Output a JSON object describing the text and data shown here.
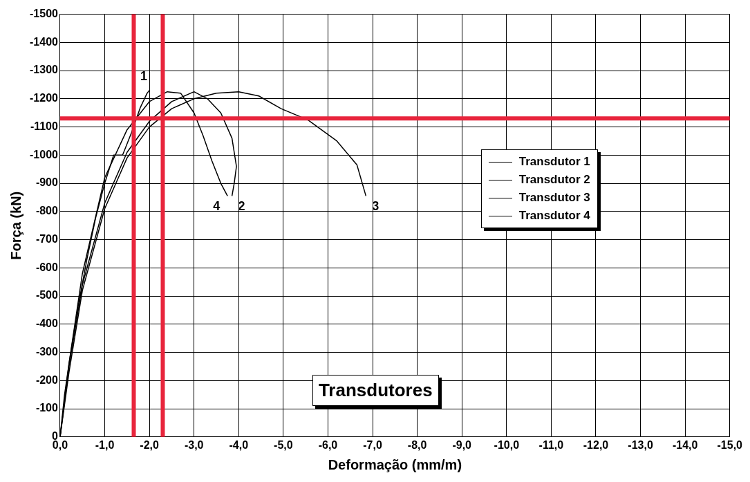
{
  "chart_data": {
    "type": "line",
    "xlabel": "Deformação (mm/m)",
    "ylabel": "Força (kN)",
    "xlim": [
      0,
      -15
    ],
    "ylim": [
      0,
      -1500
    ],
    "xticks": [
      {
        "value": 0,
        "label": "0,0"
      },
      {
        "value": -1,
        "label": "-1,0"
      },
      {
        "value": -2,
        "label": "-2,0"
      },
      {
        "value": -3,
        "label": "-3,0"
      },
      {
        "value": -4,
        "label": "-4,0"
      },
      {
        "value": -5,
        "label": "-5,0"
      },
      {
        "value": -6,
        "label": "-6,0"
      },
      {
        "value": -7,
        "label": "-7,0"
      },
      {
        "value": -8,
        "label": "-8,0"
      },
      {
        "value": -9,
        "label": "-9,0"
      },
      {
        "value": -10,
        "label": "-10,0"
      },
      {
        "value": -11,
        "label": "-11,0"
      },
      {
        "value": -12,
        "label": "-12,0"
      },
      {
        "value": -13,
        "label": "-13,0"
      },
      {
        "value": -14,
        "label": "-14,0"
      },
      {
        "value": -15,
        "label": "-15,0"
      }
    ],
    "yticks": [
      0,
      -100,
      -200,
      -300,
      -400,
      -500,
      -600,
      -700,
      -800,
      -900,
      -1000,
      -1100,
      -1200,
      -1300,
      -1400,
      -1500
    ],
    "grid": true,
    "legend": "right",
    "marker": "none",
    "line_style": "solid",
    "series": [
      {
        "name": "Transdutor 1",
        "color": "#000000",
        "x": [
          0,
          -0.1,
          -0.2,
          -0.4,
          -0.6,
          -0.8,
          -1.0,
          -1.2,
          -1.4,
          -1.6,
          -1.8,
          -1.95,
          -2.0
        ],
        "values": [
          0,
          -150,
          -260,
          -460,
          -630,
          -780,
          -900,
          -1000,
          -1000,
          -1080,
          -1170,
          -1220,
          -1230
        ]
      },
      {
        "name": "Transdutor 2",
        "color": "#000000",
        "x": [
          0,
          -0.2,
          -0.5,
          -1.0,
          -1.5,
          -2.0,
          -2.5,
          -3.0,
          -3.3,
          -3.6,
          -3.85,
          -3.95,
          -3.9,
          -3.85
        ],
        "values": [
          0,
          -250,
          -540,
          -830,
          -1010,
          -1120,
          -1190,
          -1225,
          -1200,
          -1150,
          -1060,
          -960,
          -900,
          -855
        ]
      },
      {
        "name": "Transdutor 3",
        "color": "#000000",
        "x": [
          0,
          -0.2,
          -0.5,
          -1.0,
          -1.5,
          -2.0,
          -2.5,
          -3.0,
          -3.5,
          -4.0,
          -4.45,
          -4.95,
          -5.55,
          -6.2,
          -6.65,
          -6.85
        ],
        "values": [
          0,
          -230,
          -520,
          -810,
          -990,
          -1100,
          -1165,
          -1200,
          -1220,
          -1225,
          -1210,
          -1165,
          -1125,
          -1050,
          -965,
          -855
        ]
      },
      {
        "name": "Transdutor 4",
        "color": "#000000",
        "x": [
          0,
          -0.2,
          -0.5,
          -1.0,
          -1.5,
          -2.0,
          -2.4,
          -2.7,
          -3.0,
          -3.2,
          -3.4,
          -3.6,
          -3.75
        ],
        "values": [
          0,
          -260,
          -580,
          -920,
          -1090,
          -1190,
          -1225,
          -1220,
          -1150,
          -1070,
          -980,
          -900,
          -855
        ]
      }
    ],
    "ref_lines": [
      {
        "axis": "y",
        "value": -1130,
        "color": "#e8253c"
      },
      {
        "axis": "x",
        "value": -1.65,
        "color": "#e8253c"
      },
      {
        "axis": "x",
        "value": -2.3,
        "color": "#e8253c"
      }
    ],
    "annotations": [
      {
        "text": "1",
        "x": -2.0,
        "y": -1230
      },
      {
        "text": "4",
        "x": -3.75,
        "y": -855
      },
      {
        "text": "2",
        "x": -3.85,
        "y": -855
      },
      {
        "text": "3",
        "x": -6.85,
        "y": -855
      },
      "Transdutores"
    ]
  }
}
